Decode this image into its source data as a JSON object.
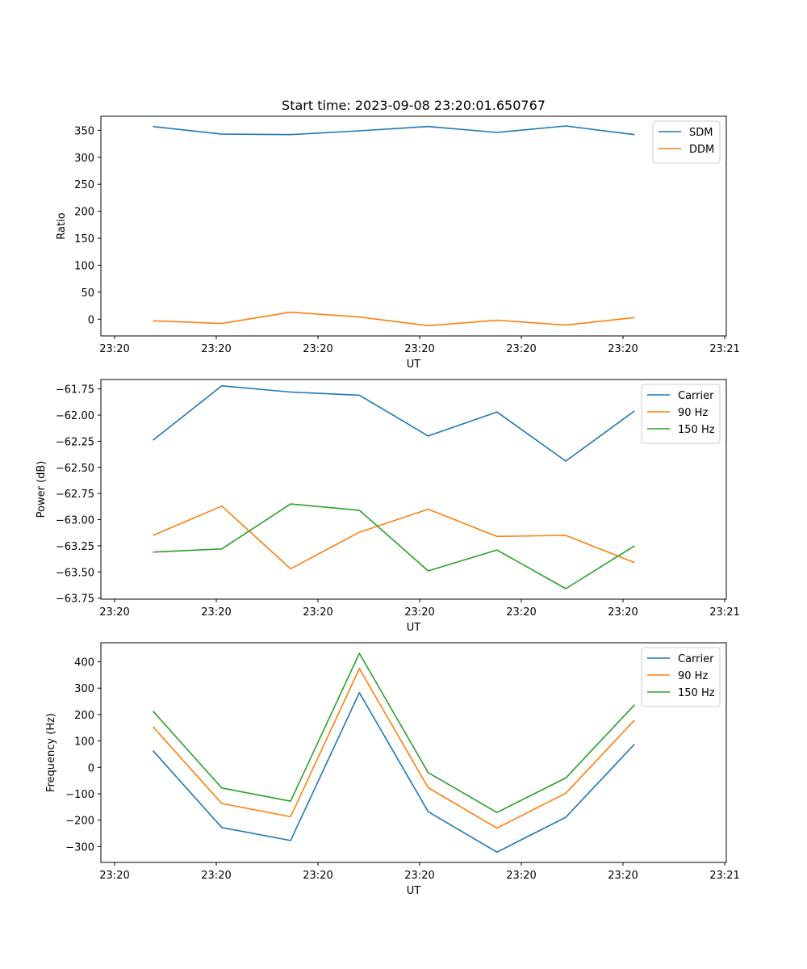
{
  "figure_title": "Start time: 2023-09-08 23:20:01.650767",
  "chart_data": [
    {
      "type": "line",
      "title": "Start time: 2023-09-08 23:20:01.650767",
      "xlabel": "UT",
      "ylabel": "Ratio",
      "x_tick_labels": [
        "23:20",
        "23:20",
        "23:20",
        "23:20",
        "23:20",
        "23:20",
        "23:21"
      ],
      "xlim": [
        0,
        6
      ],
      "x": [
        0.5,
        1.16,
        1.82,
        2.48,
        3.14,
        3.8,
        4.46,
        5.12
      ],
      "ylim": [
        -31,
        376
      ],
      "y_ticks": [
        0,
        50,
        100,
        150,
        200,
        250,
        300,
        350
      ],
      "legend_position": "top-right",
      "series": [
        {
          "name": "SDM",
          "color": "#1f77b4",
          "values": [
            357,
            343,
            342,
            349,
            357,
            346,
            358,
            342
          ]
        },
        {
          "name": "DDM",
          "color": "#ff7f0e",
          "values": [
            -3,
            -8,
            13,
            4,
            -12,
            -2,
            -11,
            3
          ]
        }
      ]
    },
    {
      "type": "line",
      "title": "",
      "xlabel": "UT",
      "ylabel": "Power (dB)",
      "x_tick_labels": [
        "23:20",
        "23:20",
        "23:20",
        "23:20",
        "23:20",
        "23:20",
        "23:21"
      ],
      "xlim": [
        0,
        6
      ],
      "x": [
        0.5,
        1.16,
        1.82,
        2.48,
        3.14,
        3.8,
        4.46,
        5.12
      ],
      "ylim": [
        -63.76,
        -61.66
      ],
      "y_ticks": [
        -61.75,
        -62.0,
        -62.25,
        -62.5,
        -62.75,
        -63.0,
        -63.25,
        -63.5,
        -63.75
      ],
      "y_tick_labels": [
        "−61.75",
        "−62.00",
        "−62.25",
        "−62.50",
        "−62.75",
        "−63.00",
        "−63.25",
        "−63.50",
        "−63.75"
      ],
      "legend_position": "top-right",
      "series": [
        {
          "name": "Carrier",
          "color": "#1f77b4",
          "values": [
            -62.24,
            -61.72,
            -61.78,
            -61.81,
            -62.2,
            -61.97,
            -62.44,
            -61.96
          ]
        },
        {
          "name": "90 Hz",
          "color": "#ff7f0e",
          "values": [
            -63.15,
            -62.87,
            -63.47,
            -63.12,
            -62.9,
            -63.16,
            -63.15,
            -63.41
          ]
        },
        {
          "name": "150 Hz",
          "color": "#2ca02c",
          "values": [
            -63.31,
            -63.28,
            -62.85,
            -62.91,
            -63.49,
            -63.29,
            -63.66,
            -63.25
          ]
        }
      ]
    },
    {
      "type": "line",
      "title": "",
      "xlabel": "UT",
      "ylabel": "Frequency (Hz)",
      "x_tick_labels": [
        "23:20",
        "23:20",
        "23:20",
        "23:20",
        "23:20",
        "23:20",
        "23:21"
      ],
      "xlim": [
        0,
        6
      ],
      "x": [
        0.5,
        1.16,
        1.82,
        2.48,
        3.14,
        3.8,
        4.46,
        5.12
      ],
      "ylim": [
        -360,
        472
      ],
      "y_ticks": [
        -300,
        -200,
        -100,
        0,
        100,
        200,
        300,
        400
      ],
      "y_tick_labels": [
        "−300",
        "−200",
        "−100",
        "0",
        "100",
        "200",
        "300",
        "400"
      ],
      "legend_position": "top-right",
      "series": [
        {
          "name": "Carrier",
          "color": "#1f77b4",
          "values": [
            63,
            -228,
            -277,
            283,
            -168,
            -321,
            -189,
            88
          ]
        },
        {
          "name": "90 Hz",
          "color": "#ff7f0e",
          "values": [
            154,
            -137,
            -187,
            374,
            -77,
            -230,
            -98,
            179
          ]
        },
        {
          "name": "150 Hz",
          "color": "#2ca02c",
          "values": [
            213,
            -78,
            -128,
            432,
            -20,
            -171,
            -40,
            237
          ]
        }
      ]
    }
  ]
}
